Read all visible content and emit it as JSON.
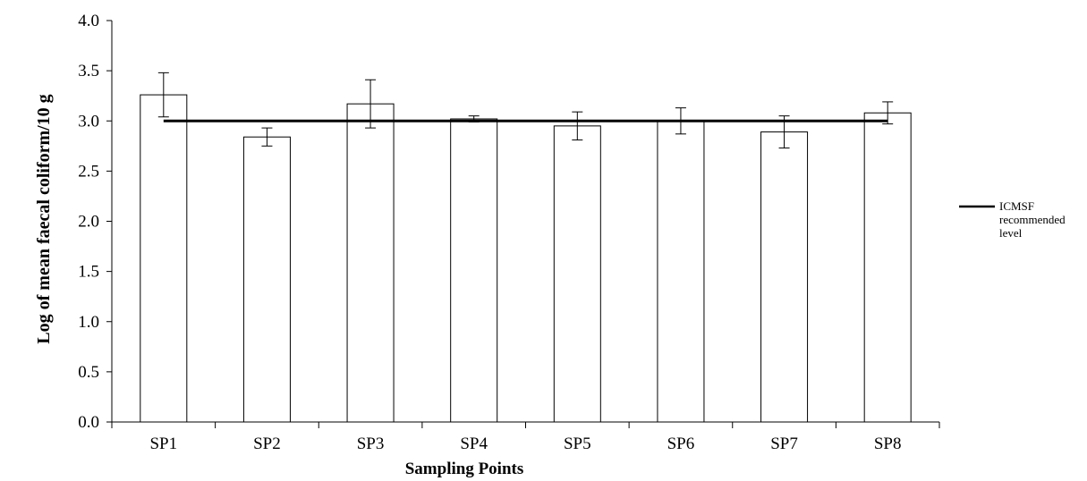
{
  "chart_data": {
    "type": "bar",
    "title": "",
    "xlabel": "Sampling Points",
    "ylabel": "Log of mean faecal coliform/10 g",
    "categories": [
      "SP1",
      "SP2",
      "SP3",
      "SP4",
      "SP5",
      "SP6",
      "SP7",
      "SP8"
    ],
    "series": [
      {
        "values": [
          3.26,
          2.84,
          3.17,
          3.02,
          2.95,
          3.0,
          2.89,
          3.08
        ],
        "error": [
          0.22,
          0.09,
          0.24,
          0.03,
          0.14,
          0.13,
          0.16,
          0.11
        ]
      }
    ],
    "reference_line": {
      "name": "ICMSF recommended level",
      "value": 3.0
    },
    "ylim": [
      0,
      4.0
    ],
    "yticks": [
      "0.0",
      "0.5",
      "1.0",
      "1.5",
      "2.0",
      "2.5",
      "3.0",
      "3.5",
      "4.0"
    ],
    "grid": false,
    "legend": {
      "position": "right",
      "entries": [
        "ICMSF",
        "recommended",
        "level"
      ]
    },
    "colors": {
      "bar_fill": "#ffffff",
      "bar_stroke": "#000000",
      "reference_line": "#000000"
    }
  }
}
